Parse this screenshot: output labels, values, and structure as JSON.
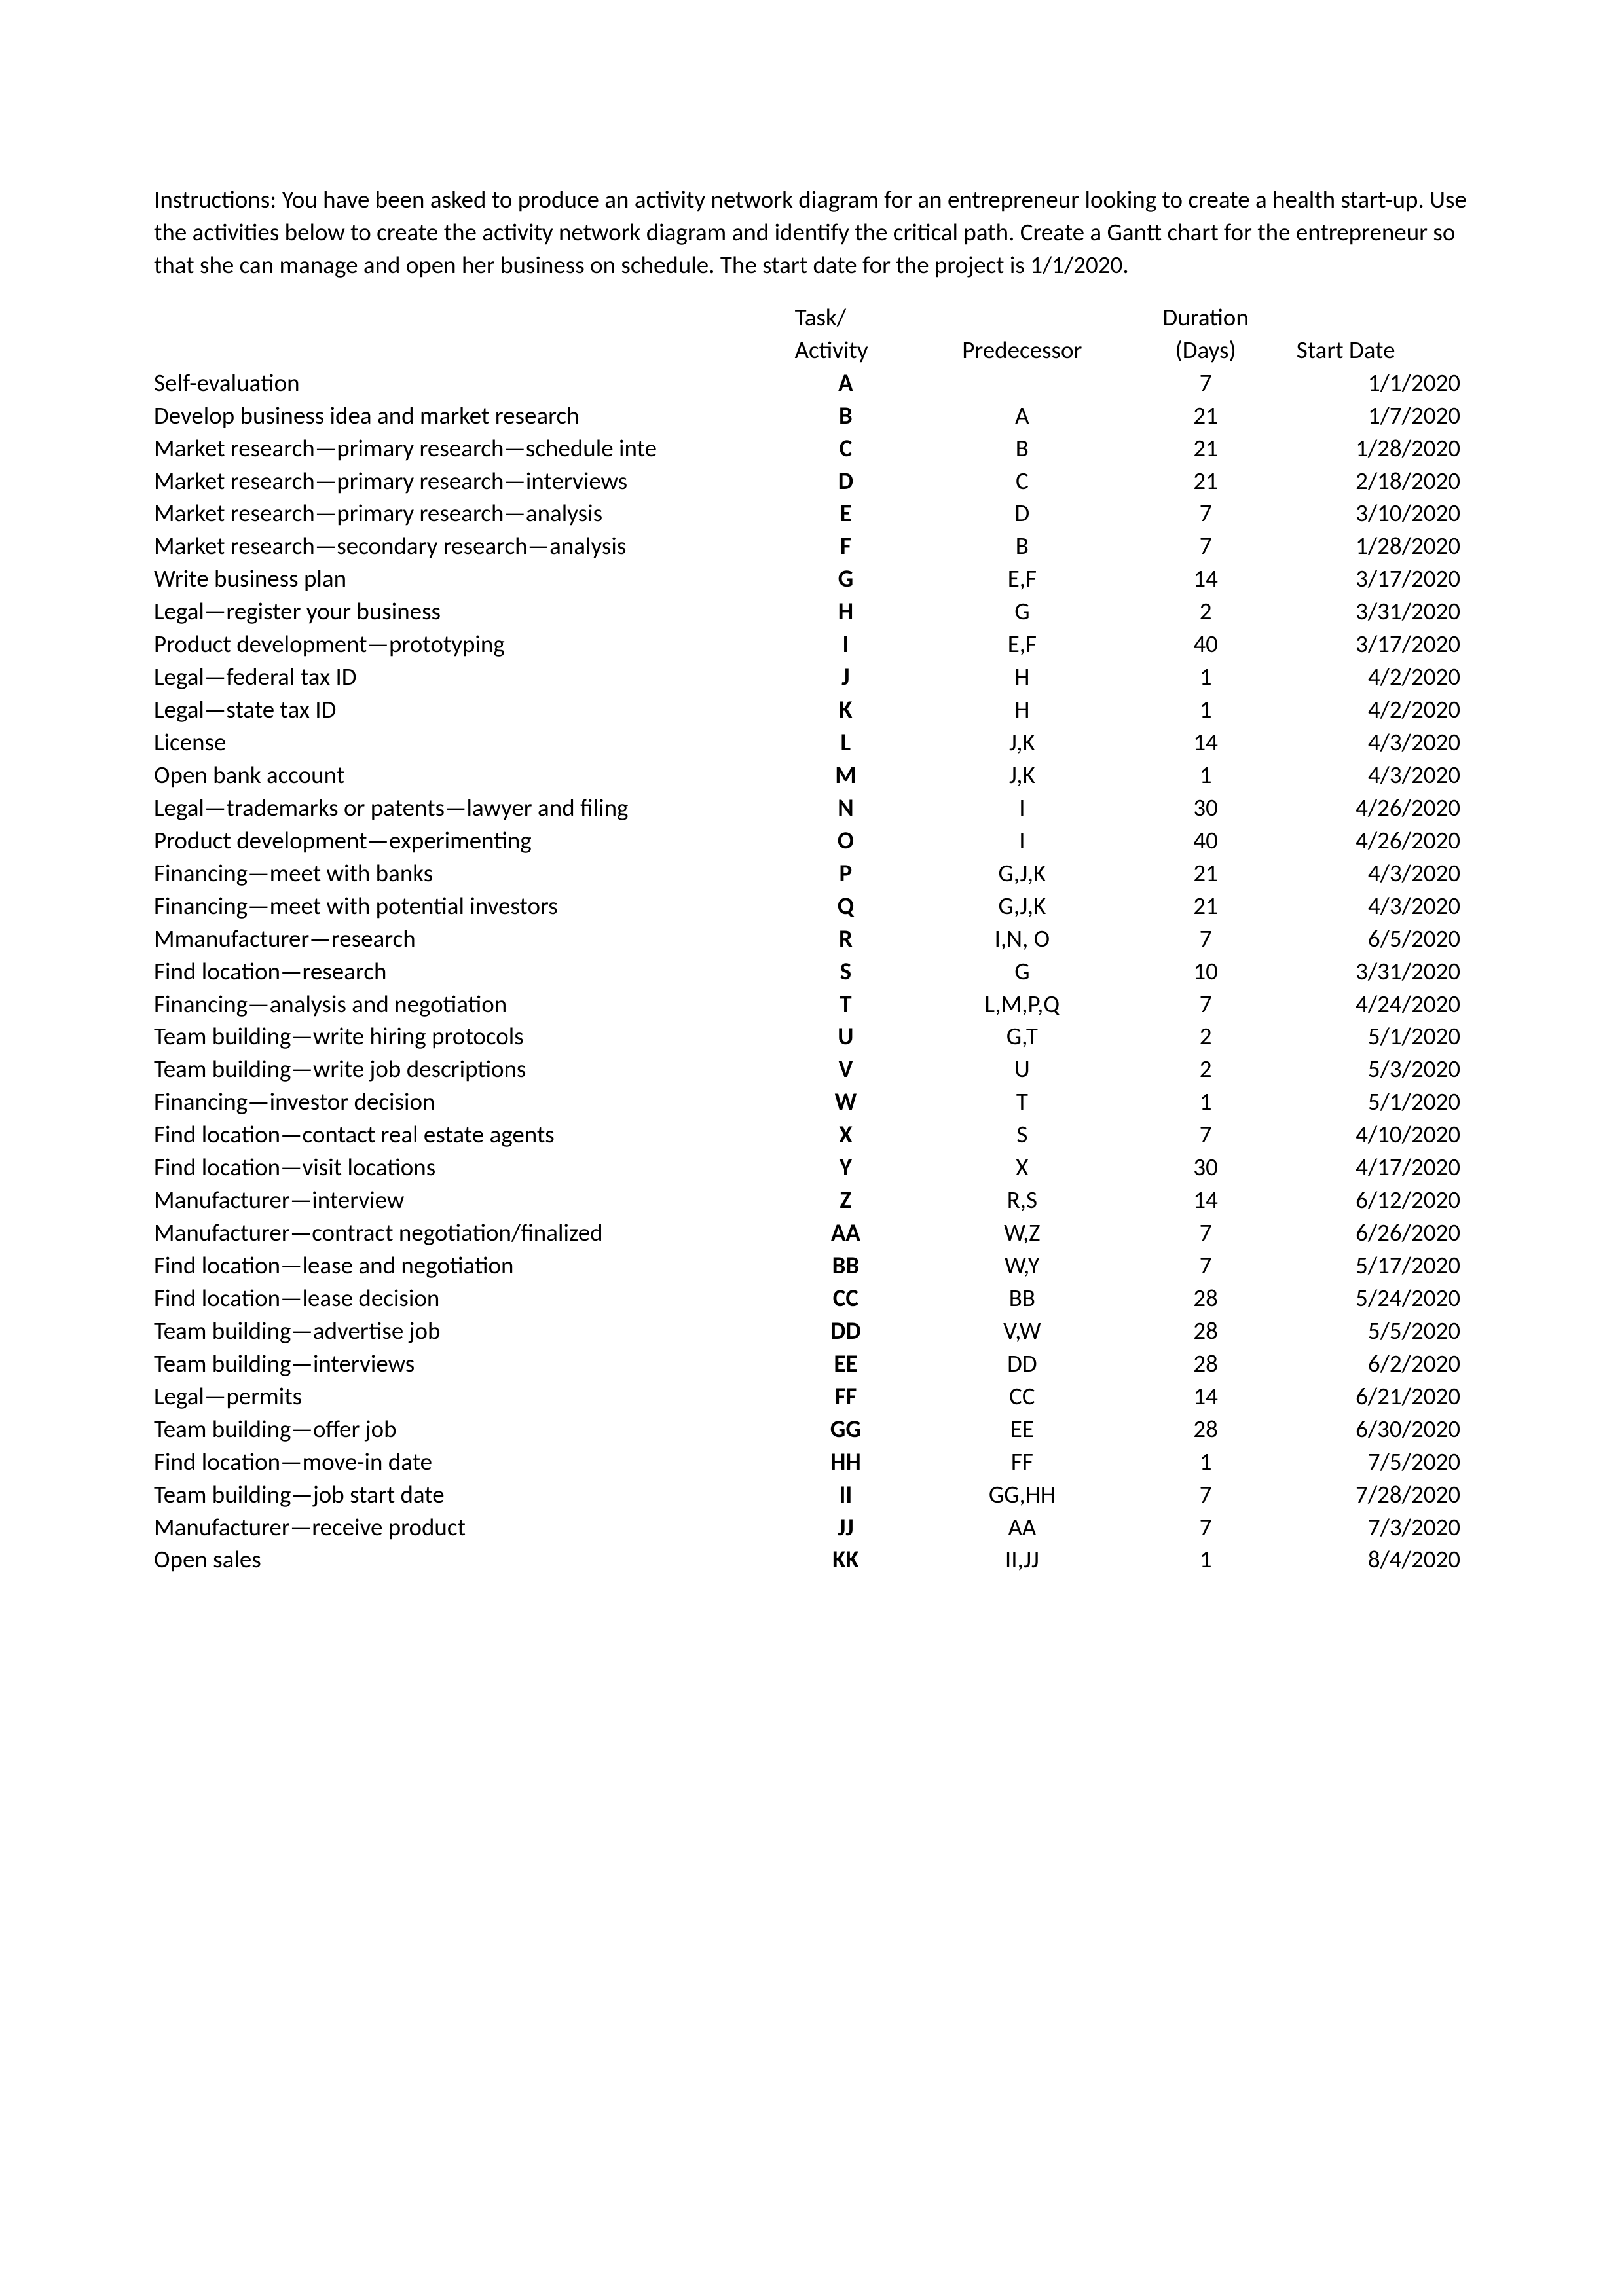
{
  "instructions": "Instructions: You have been asked to produce an activity network diagram for an entrepreneur looking to create a health start-up. Use the activities below to create the activity network diagram and identify the critical path. Create a Gantt chart for the entrepreneur so that she can manage and open her business on schedule. The start date for the project is 1/1/2020.",
  "headers": {
    "task_line1": "Task/",
    "task_line2": "Activity",
    "predecessor": "Predecessor",
    "duration_line1": "Duration",
    "duration_line2": "(Days)",
    "start_date": "Start Date"
  },
  "rows": [
    {
      "desc": "Self-evaluation",
      "task": "A",
      "pred": "",
      "dur": "7",
      "start": "1/1/2020"
    },
    {
      "desc": "Develop business idea and market research",
      "task": "B",
      "pred": "A",
      "dur": "21",
      "start": "1/7/2020"
    },
    {
      "desc": "Market research—primary research—schedule inte",
      "task": "C",
      "pred": "B",
      "dur": "21",
      "start": "1/28/2020"
    },
    {
      "desc": "Market research—primary research—interviews",
      "task": "D",
      "pred": "C",
      "dur": "21",
      "start": "2/18/2020"
    },
    {
      "desc": "Market research—primary research—analysis",
      "task": "E",
      "pred": "D",
      "dur": "7",
      "start": "3/10/2020"
    },
    {
      "desc": "Market research—secondary research—analysis",
      "task": "F",
      "pred": "B",
      "dur": "7",
      "start": "1/28/2020"
    },
    {
      "desc": "Write business plan",
      "task": "G",
      "pred": "E,F",
      "dur": "14",
      "start": "3/17/2020"
    },
    {
      "desc": "Legal—register your business",
      "task": "H",
      "pred": "G",
      "dur": "2",
      "start": "3/31/2020"
    },
    {
      "desc": "Product development—prototyping",
      "task": "I",
      "pred": "E,F",
      "dur": "40",
      "start": "3/17/2020"
    },
    {
      "desc": "Legal—federal tax ID",
      "task": "J",
      "pred": "H",
      "dur": "1",
      "start": "4/2/2020"
    },
    {
      "desc": "Legal—state tax ID",
      "task": "K",
      "pred": "H",
      "dur": "1",
      "start": "4/2/2020"
    },
    {
      "desc": "License",
      "task": "L",
      "pred": "J,K",
      "dur": "14",
      "start": "4/3/2020"
    },
    {
      "desc": "Open bank account",
      "task": "M",
      "pred": "J,K",
      "dur": "1",
      "start": "4/3/2020"
    },
    {
      "desc": "Legal—trademarks or patents—lawyer and filing",
      "task": "N",
      "pred": "I",
      "dur": "30",
      "start": "4/26/2020"
    },
    {
      "desc": "Product development—experimenting",
      "task": "O",
      "pred": "I",
      "dur": "40",
      "start": "4/26/2020"
    },
    {
      "desc": "Financing—meet with banks",
      "task": "P",
      "pred": "G,J,K",
      "dur": "21",
      "start": "4/3/2020"
    },
    {
      "desc": "Financing—meet with potential investors",
      "task": "Q",
      "pred": "G,J,K",
      "dur": "21",
      "start": "4/3/2020"
    },
    {
      "desc": "Mmanufacturer—research",
      "task": "R",
      "pred": "I,N, O",
      "dur": "7",
      "start": "6/5/2020"
    },
    {
      "desc": "Find location—research",
      "task": "S",
      "pred": "G",
      "dur": "10",
      "start": "3/31/2020"
    },
    {
      "desc": "Financing—analysis and negotiation",
      "task": "T",
      "pred": "L,M,P,Q",
      "dur": "7",
      "start": "4/24/2020"
    },
    {
      "desc": "Team building—write hiring protocols",
      "task": "U",
      "pred": "G,T",
      "dur": "2",
      "start": "5/1/2020"
    },
    {
      "desc": "Team building—write job descriptions",
      "task": "V",
      "pred": "U",
      "dur": "2",
      "start": "5/3/2020"
    },
    {
      "desc": "Financing—investor decision",
      "task": "W",
      "pred": "T",
      "dur": "1",
      "start": "5/1/2020"
    },
    {
      "desc": "Find location—contact real estate agents",
      "task": "X",
      "pred": "S",
      "dur": "7",
      "start": "4/10/2020"
    },
    {
      "desc": "Find location—visit locations",
      "task": "Y",
      "pred": "X",
      "dur": "30",
      "start": "4/17/2020"
    },
    {
      "desc": "Manufacturer—interview",
      "task": "Z",
      "pred": "R,S",
      "dur": "14",
      "start": "6/12/2020"
    },
    {
      "desc": "Manufacturer—contract negotiation/finalized",
      "task": "AA",
      "pred": "W,Z",
      "dur": "7",
      "start": "6/26/2020"
    },
    {
      "desc": "Find location—lease and negotiation",
      "task": "BB",
      "pred": "W,Y",
      "dur": "7",
      "start": "5/17/2020"
    },
    {
      "desc": "Find location—lease decision",
      "task": "CC",
      "pred": "BB",
      "dur": "28",
      "start": "5/24/2020"
    },
    {
      "desc": "Team building—advertise job",
      "task": "DD",
      "pred": "V,W",
      "dur": "28",
      "start": "5/5/2020"
    },
    {
      "desc": "Team building—interviews",
      "task": "EE",
      "pred": "DD",
      "dur": "28",
      "start": "6/2/2020"
    },
    {
      "desc": "Legal—permits",
      "task": "FF",
      "pred": "CC",
      "dur": "14",
      "start": "6/21/2020"
    },
    {
      "desc": "Team building—offer job",
      "task": "GG",
      "pred": "EE",
      "dur": "28",
      "start": "6/30/2020"
    },
    {
      "desc": "Find location—move-in date",
      "task": "HH",
      "pred": "FF",
      "dur": "1",
      "start": "7/5/2020"
    },
    {
      "desc": "Team building—job start date",
      "task": "II",
      "pred": "GG,HH",
      "dur": "7",
      "start": "7/28/2020"
    },
    {
      "desc": "Manufacturer—receive product",
      "task": "JJ",
      "pred": "AA",
      "dur": "7",
      "start": "7/3/2020"
    },
    {
      "desc": "Open sales",
      "task": "KK",
      "pred": "II,JJ",
      "dur": "1",
      "start": "8/4/2020"
    }
  ]
}
